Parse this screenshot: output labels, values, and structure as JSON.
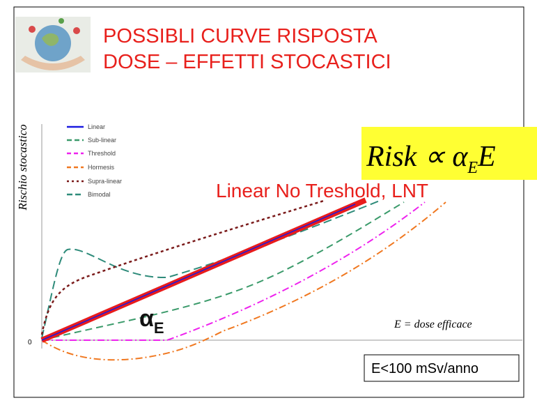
{
  "slide": {
    "title": [
      "POSSIBLI CURVE RISPOSTA",
      "DOSE  –  EFFETTI STOCASTICI"
    ],
    "y_axis_label": "Rischio stocastico",
    "x_axis_label": "E = dose efficace",
    "origin_label": "0",
    "legend": [
      "Linear",
      "Sub-linear",
      "Threshold",
      "Hormesis",
      "Supra-linear",
      "Bimodal"
    ],
    "formula": {
      "main": "Risk ∝ α",
      "subscript": "E",
      "tail": "E"
    },
    "lnt_label": "Linear No Treshold, LNT",
    "slope_label": {
      "main": "α",
      "subscript": "E"
    },
    "limit_box": "E<100 mSv/anno"
  }
}
